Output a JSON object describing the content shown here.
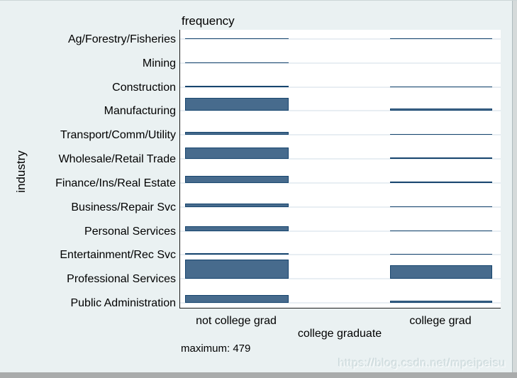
{
  "window": {
    "watermark": "https://blog.csdn.net/mpeipeisu"
  },
  "chart_data": {
    "type": "bar",
    "variant": "tabplot-frequency-strips",
    "title": "frequency",
    "ylabel": "industry",
    "xlabel": "college graduate",
    "note": "maximum: 479",
    "max_value": 479,
    "grid": "horizontal-baselines",
    "legend_position": "none",
    "panels": [
      "not college grad",
      "college grad"
    ],
    "categories": [
      "Ag/Forestry/Fisheries",
      "Mining",
      "Construction",
      "Manufacturing",
      "Transport/Comm/Utility",
      "Wholesale/Retail Trade",
      "Finance/Ins/Real Estate",
      "Business/Repair Svc",
      "Personal Services",
      "Entertainment/Rec Svc",
      "Professional Services",
      "Public Administration"
    ],
    "series": [
      {
        "name": "not college grad",
        "values": [
          26,
          22,
          35,
          330,
          75,
          285,
          180,
          85,
          130,
          32,
          479,
          205
        ]
      },
      {
        "name": "college grad",
        "values": [
          15,
          0,
          13,
          48,
          26,
          45,
          28,
          26,
          26,
          22,
          347,
          57
        ]
      }
    ],
    "colors": {
      "bar_fill": "#476b8d",
      "bar_border": "#17456e",
      "background": "#eaf1f2",
      "plot_background": "#ffffff",
      "gridline": "#e8eef3",
      "axis_line": "#1a1a1a",
      "text": "#000000",
      "watermark_text": "#dce7e9",
      "bottom_strip": "#a9abab",
      "right_strip": "#d5dada"
    }
  }
}
